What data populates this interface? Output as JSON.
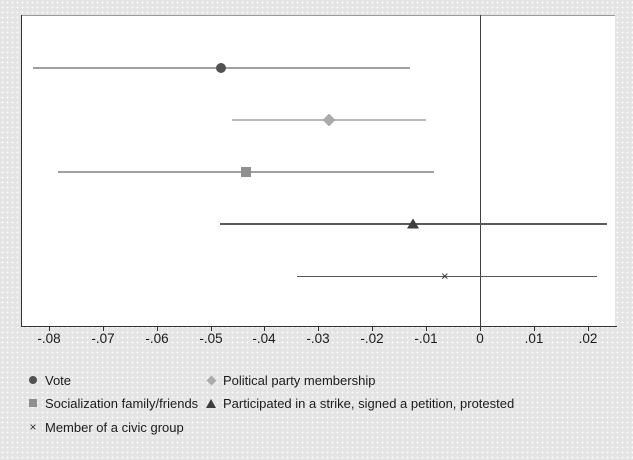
{
  "colors": {
    "figure_bg": "#e4e4e4",
    "figure_dots": "#fbfbfb",
    "plot_bg": "#ffffff",
    "axis": "#303030",
    "top_border": "#9a9a9a",
    "zero_line": "#3f3f3f",
    "tick_label": "#1b1b1b",
    "legend_text": "#1b1b1b"
  },
  "chart_data": {
    "type": "scatter",
    "subtype": "coefficient-plot-with-confidence-intervals",
    "title": "",
    "xlabel": "",
    "ylabel": "",
    "grid": false,
    "xlim": [
      -0.0852,
      0.0251
    ],
    "zero_reference_line": 0,
    "x_ticks": [
      {
        "value": -0.08,
        "label": "-.08"
      },
      {
        "value": -0.07,
        "label": "-.07"
      },
      {
        "value": -0.06,
        "label": "-.06"
      },
      {
        "value": -0.05,
        "label": "-.05"
      },
      {
        "value": -0.04,
        "label": "-.04"
      },
      {
        "value": -0.03,
        "label": "-.03"
      },
      {
        "value": -0.02,
        "label": "-.02"
      },
      {
        "value": -0.01,
        "label": "-.01"
      },
      {
        "value": 0,
        "label": "0"
      },
      {
        "value": 0.01,
        "label": ".01"
      },
      {
        "value": 0.02,
        "label": ".02"
      }
    ],
    "series": [
      {
        "name": "Vote",
        "marker": "circle",
        "marker_color": "#525252",
        "line_color": "#a0a0a0",
        "line_width": 2,
        "estimate": -0.048,
        "ci_low": -0.083,
        "ci_high": -0.013
      },
      {
        "name": "Political party membership",
        "marker": "diamond",
        "marker_color": "#ababab",
        "line_color": "#b8b8b8",
        "line_width": 2,
        "estimate": -0.028,
        "ci_low": -0.046,
        "ci_high": -0.01
      },
      {
        "name": "Socialization family/friends",
        "marker": "square",
        "marker_color": "#8f8f8f",
        "line_color": "#a0a0a0",
        "line_width": 2,
        "estimate": -0.0435,
        "ci_low": -0.0783,
        "ci_high": -0.0085
      },
      {
        "name": "Participated in a strike, signed a petition, protested",
        "marker": "triangle",
        "marker_color": "#3d3d3d",
        "line_color": "#5a5a5a",
        "line_width": 2,
        "estimate": -0.0125,
        "ci_low": -0.0483,
        "ci_high": 0.0236
      },
      {
        "name": "Member of a civic group",
        "marker": "x",
        "marker_color": "#333333",
        "line_color": "#555555",
        "line_width": 1,
        "estimate": -0.0065,
        "ci_low": -0.034,
        "ci_high": 0.0218
      }
    ],
    "legend_position": "bottom",
    "legend_columns": 2
  }
}
